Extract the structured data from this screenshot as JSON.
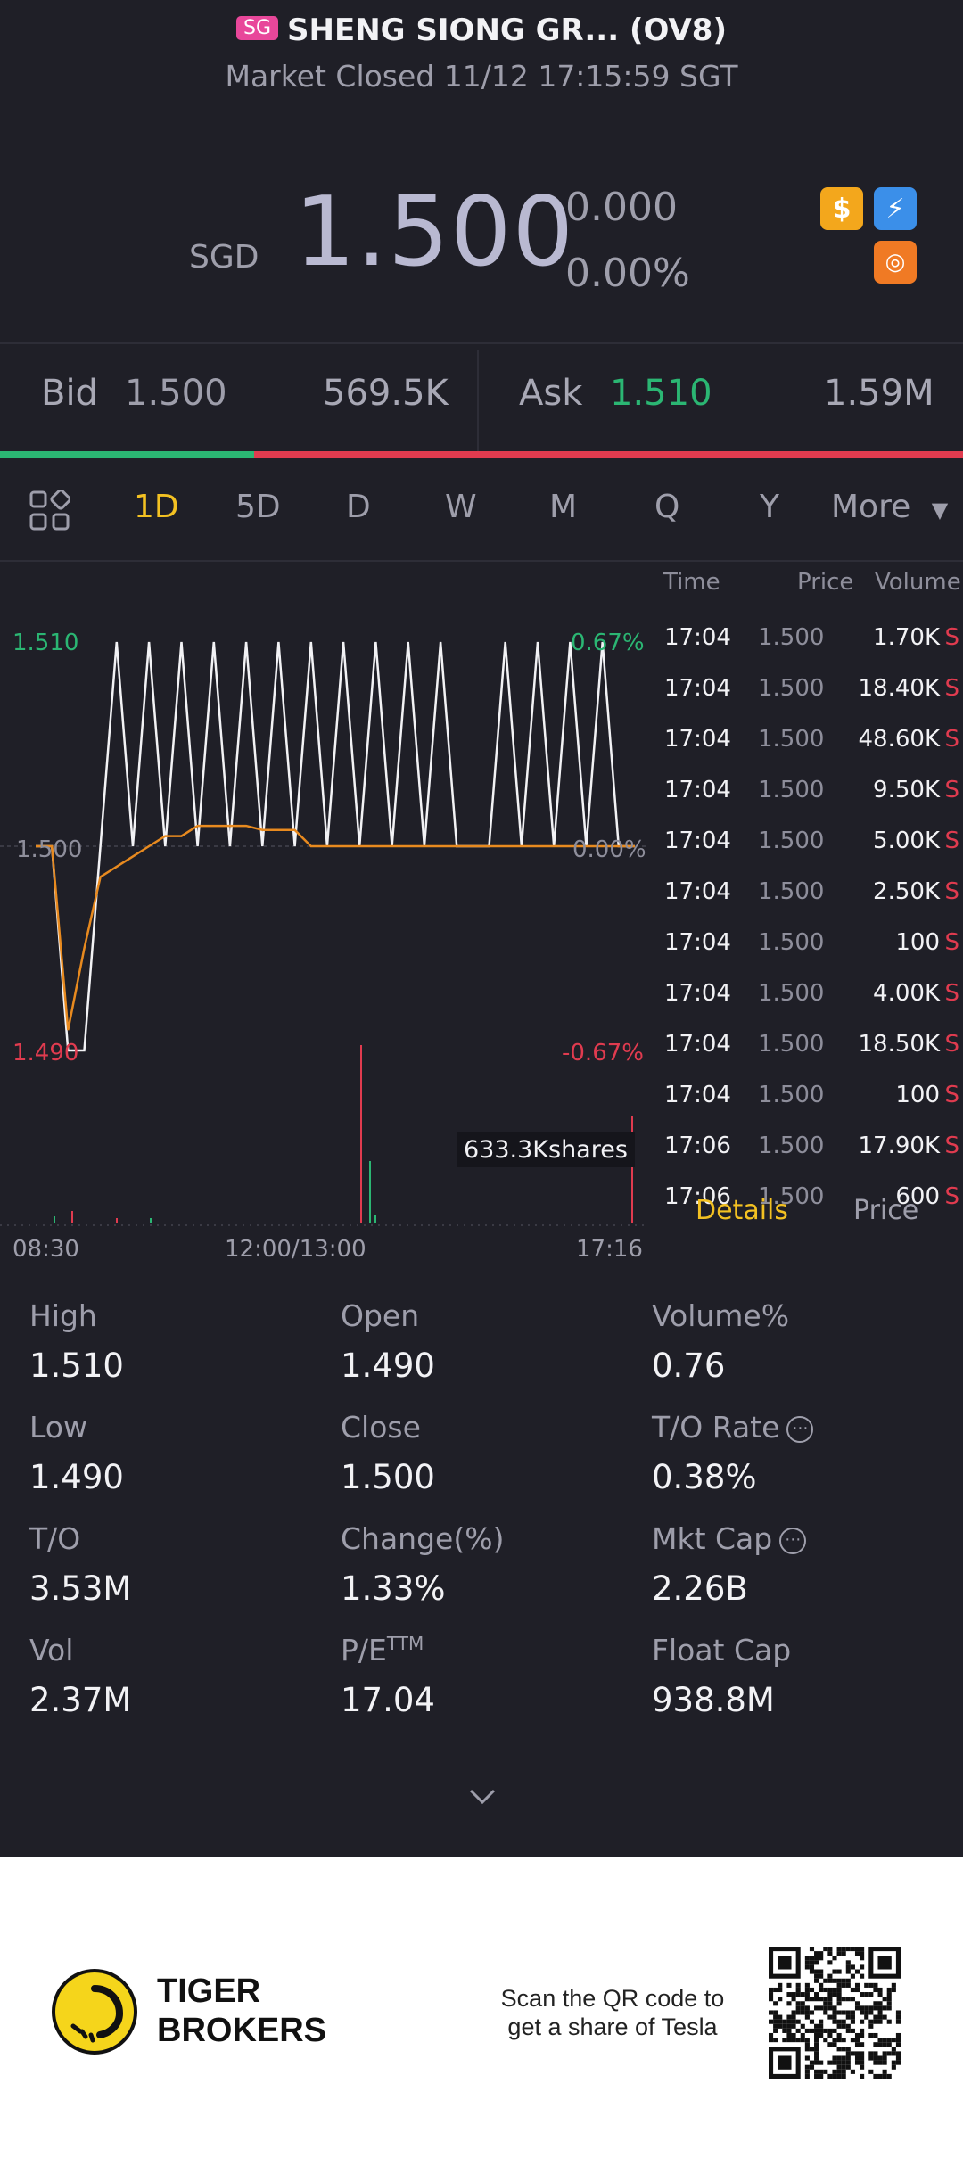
{
  "header": {
    "market_badge": "SG",
    "title": "SHENG SIONG GR... (OV8)",
    "subtitle": "Market Closed 11/12 17:15:59 SGT"
  },
  "quote": {
    "currency": "SGD",
    "price": "1.500",
    "change": "0.000",
    "change_pct": "0.00%"
  },
  "icons": [
    "dollar-icon",
    "flash-icon",
    "gold-coin-icon"
  ],
  "order_book": {
    "bid_label": "Bid",
    "bid_price": "1.500",
    "bid_size": "569.5K",
    "ask_label": "Ask",
    "ask_price": "1.510",
    "ask_size": "1.59M",
    "bid_fraction": 0.264
  },
  "period_tabs": [
    "1D",
    "5D",
    "D",
    "W",
    "M",
    "Q",
    "Y"
  ],
  "period_active": "1D",
  "more_label": "More",
  "chart": {
    "y_high": "1.510",
    "y_mid": "1.500",
    "y_low": "1.490",
    "pct_high": "0.67%",
    "pct_mid": "0.00%",
    "pct_low": "-0.67%",
    "volume_label": "633.3Kshares",
    "x_start": "08:30",
    "x_mid": "12:00/13:00",
    "x_end": "17:16"
  },
  "chart_data": {
    "type": "line",
    "ylim": [
      1.49,
      1.51
    ],
    "series": [
      {
        "values": [
          1.5,
          1.5,
          1.49,
          1.49,
          1.5,
          1.51,
          1.5,
          1.51,
          1.5,
          1.51,
          1.5,
          1.51,
          1.5,
          1.51,
          1.5,
          1.51,
          1.5,
          1.51,
          1.5,
          1.51,
          1.5,
          1.51,
          1.5,
          1.51,
          1.5,
          1.51,
          1.5,
          1.5,
          1.5,
          1.51,
          1.5,
          1.51,
          1.5,
          1.51,
          1.5,
          1.51,
          1.5,
          1.5
        ]
      },
      {
        "values": [
          1.5,
          1.5,
          1.491,
          1.495,
          1.4985,
          1.499,
          1.4995,
          1.5,
          1.5005,
          1.5005,
          1.501,
          1.501,
          1.501,
          1.501,
          1.5008,
          1.5008,
          1.5008,
          1.5,
          1.5,
          1.5,
          1.5,
          1.5,
          1.5,
          1.5,
          1.5,
          1.5,
          1.5,
          1.5,
          1.5,
          1.5,
          1.5,
          1.5,
          1.5,
          1.5,
          1.5,
          1.5,
          1.5,
          1.5
        ]
      }
    ]
  },
  "trades": {
    "headers": [
      "Time",
      "Price",
      "Volume"
    ],
    "rows": [
      {
        "time": "17:04",
        "price": "1.500",
        "vol": "1.70K",
        "side": "S"
      },
      {
        "time": "17:04",
        "price": "1.500",
        "vol": "18.40K",
        "side": "S"
      },
      {
        "time": "17:04",
        "price": "1.500",
        "vol": "48.60K",
        "side": "S"
      },
      {
        "time": "17:04",
        "price": "1.500",
        "vol": "9.50K",
        "side": "S"
      },
      {
        "time": "17:04",
        "price": "1.500",
        "vol": "5.00K",
        "side": "S"
      },
      {
        "time": "17:04",
        "price": "1.500",
        "vol": "2.50K",
        "side": "S"
      },
      {
        "time": "17:04",
        "price": "1.500",
        "vol": "100",
        "side": "S"
      },
      {
        "time": "17:04",
        "price": "1.500",
        "vol": "4.00K",
        "side": "S"
      },
      {
        "time": "17:04",
        "price": "1.500",
        "vol": "18.50K",
        "side": "S"
      },
      {
        "time": "17:04",
        "price": "1.500",
        "vol": "100",
        "side": "S"
      },
      {
        "time": "17:06",
        "price": "1.500",
        "vol": "17.90K",
        "side": "S"
      },
      {
        "time": "17:06",
        "price": "1.500",
        "vol": "600",
        "side": "S"
      }
    ]
  },
  "detail_tabs": {
    "details": "Details",
    "price": "Price"
  },
  "stats": [
    {
      "label": "High",
      "value": "1.510"
    },
    {
      "label": "Open",
      "value": "1.490"
    },
    {
      "label": "Volume%",
      "value": "0.76"
    },
    {
      "label": "Low",
      "value": "1.490"
    },
    {
      "label": "Close",
      "value": "1.500"
    },
    {
      "label": "T/O Rate",
      "value": "0.38%"
    },
    {
      "label": "T/O",
      "value": "3.53M"
    },
    {
      "label": "Change(%)",
      "value": "1.33%"
    },
    {
      "label": "Mkt Cap",
      "value": "2.26B"
    },
    {
      "label": "Vol",
      "value": "2.37M"
    },
    {
      "label": "P/E",
      "value": "17.04"
    },
    {
      "label": "Float Cap",
      "value": "938.8M"
    }
  ],
  "pe_superscript": "TTM",
  "footer": {
    "brand_line1": "TIGER",
    "brand_line2": "BROKERS",
    "qr_text": "Scan the QR code to get a share of Tesla"
  },
  "colors": {
    "up": "#2bb673",
    "down": "#e03b4f",
    "accent": "#f3c122",
    "avg_line": "#e88a1f"
  }
}
